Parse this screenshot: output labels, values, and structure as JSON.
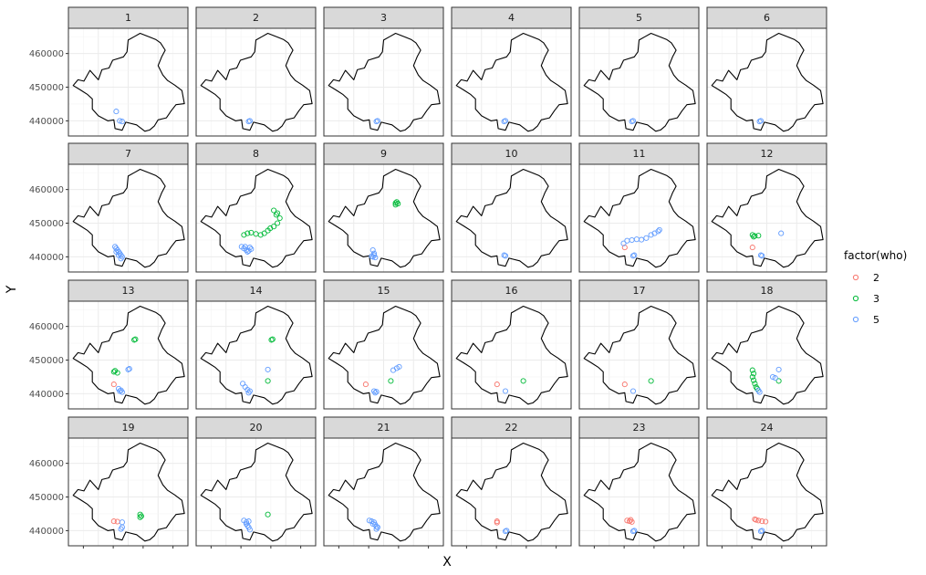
{
  "chart_data": {
    "type": "scatter",
    "facet_by": "hour",
    "panels": [
      "1",
      "2",
      "3",
      "4",
      "5",
      "6",
      "7",
      "8",
      "9",
      "10",
      "11",
      "12",
      "13",
      "14",
      "15",
      "16",
      "17",
      "18",
      "19",
      "20",
      "21",
      "22",
      "23",
      "24"
    ],
    "xlabel": "X",
    "ylabel": "Y",
    "y_ticks": [
      440000,
      450000,
      460000
    ],
    "y_tick_labels": [
      "440000",
      "450000",
      "460000"
    ],
    "ylim": [
      435500,
      467500
    ],
    "xlim": [
      0,
      1
    ],
    "grid": true,
    "legend": {
      "title": "factor(who)",
      "placement": "right",
      "entries": [
        {
          "label": "2",
          "color": "#F8766D"
        },
        {
          "label": "3",
          "color": "#00BA38"
        },
        {
          "label": "5",
          "color": "#619CFF"
        }
      ]
    },
    "boundary": [
      [
        0.04,
        450500
      ],
      [
        0.1,
        449200
      ],
      [
        0.16,
        447800
      ],
      [
        0.2,
        446500
      ],
      [
        0.2,
        443500
      ],
      [
        0.25,
        441500
      ],
      [
        0.33,
        440000
      ],
      [
        0.38,
        440300
      ],
      [
        0.39,
        437700
      ],
      [
        0.45,
        437200
      ],
      [
        0.48,
        439600
      ],
      [
        0.57,
        438800
      ],
      [
        0.64,
        436900
      ],
      [
        0.68,
        437300
      ],
      [
        0.72,
        438500
      ],
      [
        0.75,
        440300
      ],
      [
        0.82,
        440900
      ],
      [
        0.86,
        443000
      ],
      [
        0.9,
        444800
      ],
      [
        0.97,
        445100
      ],
      [
        0.95,
        449000
      ],
      [
        0.89,
        450600
      ],
      [
        0.83,
        452000
      ],
      [
        0.79,
        453600
      ],
      [
        0.75,
        456400
      ],
      [
        0.78,
        459000
      ],
      [
        0.81,
        461000
      ],
      [
        0.77,
        463200
      ],
      [
        0.73,
        464200
      ],
      [
        0.68,
        464900
      ],
      [
        0.6,
        466000
      ],
      [
        0.55,
        465000
      ],
      [
        0.5,
        464000
      ],
      [
        0.49,
        460500
      ],
      [
        0.46,
        459000
      ],
      [
        0.37,
        458000
      ],
      [
        0.34,
        455700
      ],
      [
        0.28,
        455200
      ],
      [
        0.25,
        452200
      ],
      [
        0.18,
        455000
      ],
      [
        0.13,
        451800
      ],
      [
        0.08,
        452200
      ],
      [
        0.04,
        450500
      ]
    ],
    "series_data": [
      {
        "panel": "1",
        "who": "5",
        "points": [
          [
            0.4,
            442800
          ],
          [
            0.45,
            439800
          ],
          [
            0.43,
            440000
          ]
        ]
      },
      {
        "panel": "2",
        "who": "5",
        "points": [
          [
            0.44,
            439800
          ],
          [
            0.45,
            440000
          ]
        ]
      },
      {
        "panel": "3",
        "who": "5",
        "points": [
          [
            0.44,
            439800
          ],
          [
            0.45,
            440000
          ]
        ]
      },
      {
        "panel": "4",
        "who": "5",
        "points": [
          [
            0.44,
            439800
          ],
          [
            0.45,
            440000
          ]
        ]
      },
      {
        "panel": "5",
        "who": "5",
        "points": [
          [
            0.44,
            439800
          ],
          [
            0.45,
            440000
          ]
        ]
      },
      {
        "panel": "6",
        "who": "5",
        "points": [
          [
            0.44,
            439800
          ],
          [
            0.45,
            440000
          ]
        ]
      },
      {
        "panel": "7",
        "who": "5",
        "points": [
          [
            0.39,
            443000
          ],
          [
            0.4,
            442500
          ],
          [
            0.41,
            442000
          ],
          [
            0.42,
            441500
          ],
          [
            0.43,
            441000
          ],
          [
            0.44,
            440500
          ],
          [
            0.45,
            440000
          ],
          [
            0.44,
            439500
          ],
          [
            0.42,
            440500
          ],
          [
            0.4,
            441500
          ]
        ]
      },
      {
        "panel": "8",
        "who": "3",
        "points": [
          [
            0.4,
            446500
          ],
          [
            0.43,
            447000
          ],
          [
            0.46,
            447200
          ],
          [
            0.5,
            446800
          ],
          [
            0.54,
            446500
          ],
          [
            0.57,
            447000
          ],
          [
            0.6,
            447800
          ],
          [
            0.62,
            448500
          ],
          [
            0.65,
            449000
          ],
          [
            0.68,
            450000
          ],
          [
            0.7,
            451500
          ],
          [
            0.67,
            452500
          ],
          [
            0.65,
            453800
          ],
          [
            0.68,
            453000
          ]
        ]
      },
      {
        "panel": "8",
        "who": "5",
        "points": [
          [
            0.38,
            443000
          ],
          [
            0.4,
            442500
          ],
          [
            0.42,
            442000
          ],
          [
            0.44,
            441800
          ],
          [
            0.46,
            442300
          ],
          [
            0.43,
            441500
          ],
          [
            0.41,
            443000
          ],
          [
            0.45,
            442800
          ]
        ]
      },
      {
        "panel": "9",
        "who": "3",
        "points": [
          [
            0.6,
            456000
          ],
          [
            0.61,
            456300
          ],
          [
            0.62,
            455800
          ],
          [
            0.6,
            455500
          ]
        ]
      },
      {
        "panel": "9",
        "who": "5",
        "points": [
          [
            0.41,
            442000
          ],
          [
            0.42,
            441000
          ],
          [
            0.41,
            440000
          ],
          [
            0.43,
            439800
          ],
          [
            0.42,
            440500
          ],
          [
            0.4,
            440200
          ]
        ]
      },
      {
        "panel": "10",
        "who": "5",
        "points": [
          [
            0.45,
            440300
          ],
          [
            0.44,
            440500
          ]
        ]
      },
      {
        "panel": "11",
        "who": "2",
        "points": [
          [
            0.38,
            442800
          ]
        ]
      },
      {
        "panel": "11",
        "who": "5",
        "points": [
          [
            0.37,
            444000
          ],
          [
            0.4,
            444800
          ],
          [
            0.44,
            445000
          ],
          [
            0.48,
            445200
          ],
          [
            0.52,
            445100
          ],
          [
            0.56,
            445600
          ],
          [
            0.6,
            446500
          ],
          [
            0.63,
            447000
          ],
          [
            0.66,
            447600
          ],
          [
            0.67,
            448000
          ],
          [
            0.45,
            440300
          ],
          [
            0.46,
            440500
          ]
        ]
      },
      {
        "panel": "12",
        "who": "2",
        "points": [
          [
            0.38,
            442800
          ]
        ]
      },
      {
        "panel": "12",
        "who": "3",
        "points": [
          [
            0.38,
            446500
          ],
          [
            0.4,
            446200
          ],
          [
            0.43,
            446300
          ],
          [
            0.39,
            446000
          ]
        ]
      },
      {
        "panel": "12",
        "who": "5",
        "points": [
          [
            0.62,
            447000
          ],
          [
            0.45,
            440500
          ],
          [
            0.46,
            440300
          ]
        ]
      },
      {
        "panel": "13",
        "who": "2",
        "points": [
          [
            0.38,
            442800
          ]
        ]
      },
      {
        "panel": "13",
        "who": "3",
        "points": [
          [
            0.55,
            456000
          ],
          [
            0.56,
            456200
          ],
          [
            0.38,
            446500
          ],
          [
            0.41,
            446200
          ],
          [
            0.39,
            446800
          ]
        ]
      },
      {
        "panel": "13",
        "who": "5",
        "points": [
          [
            0.5,
            447200
          ],
          [
            0.51,
            447400
          ],
          [
            0.42,
            441500
          ],
          [
            0.44,
            441000
          ],
          [
            0.45,
            440500
          ],
          [
            0.43,
            440800
          ]
        ]
      },
      {
        "panel": "14",
        "who": "3",
        "points": [
          [
            0.63,
            456000
          ],
          [
            0.64,
            456200
          ],
          [
            0.6,
            443800
          ]
        ]
      },
      {
        "panel": "14",
        "who": "5",
        "points": [
          [
            0.6,
            447200
          ],
          [
            0.39,
            443000
          ],
          [
            0.41,
            442000
          ],
          [
            0.43,
            441200
          ],
          [
            0.45,
            440800
          ],
          [
            0.44,
            440300
          ]
        ]
      },
      {
        "panel": "15",
        "who": "2",
        "points": [
          [
            0.35,
            442800
          ]
        ]
      },
      {
        "panel": "15",
        "who": "3",
        "points": [
          [
            0.56,
            443800
          ]
        ]
      },
      {
        "panel": "15",
        "who": "5",
        "points": [
          [
            0.58,
            447000
          ],
          [
            0.61,
            447600
          ],
          [
            0.63,
            448000
          ],
          [
            0.42,
            440800
          ],
          [
            0.43,
            440300
          ],
          [
            0.44,
            440600
          ]
        ]
      },
      {
        "panel": "16",
        "who": "2",
        "points": [
          [
            0.38,
            442800
          ]
        ]
      },
      {
        "panel": "16",
        "who": "3",
        "points": [
          [
            0.6,
            443800
          ]
        ]
      },
      {
        "panel": "16",
        "who": "5",
        "points": [
          [
            0.45,
            440800
          ]
        ]
      },
      {
        "panel": "17",
        "who": "2",
        "points": [
          [
            0.38,
            442800
          ]
        ]
      },
      {
        "panel": "17",
        "who": "3",
        "points": [
          [
            0.6,
            443800
          ]
        ]
      },
      {
        "panel": "17",
        "who": "5",
        "points": [
          [
            0.45,
            440800
          ]
        ]
      },
      {
        "panel": "18",
        "who": "3",
        "points": [
          [
            0.38,
            447000
          ],
          [
            0.39,
            446000
          ],
          [
            0.38,
            445000
          ],
          [
            0.39,
            444000
          ],
          [
            0.4,
            443000
          ],
          [
            0.41,
            442000
          ],
          [
            0.42,
            441500
          ],
          [
            0.6,
            443800
          ]
        ]
      },
      {
        "panel": "18",
        "who": "5",
        "points": [
          [
            0.6,
            447200
          ],
          [
            0.55,
            445000
          ],
          [
            0.57,
            444700
          ],
          [
            0.43,
            441000
          ],
          [
            0.44,
            440500
          ]
        ]
      },
      {
        "panel": "19",
        "who": "2",
        "points": [
          [
            0.38,
            442800
          ],
          [
            0.41,
            442700
          ]
        ]
      },
      {
        "panel": "19",
        "who": "3",
        "points": [
          [
            0.6,
            444800
          ],
          [
            0.61,
            444300
          ],
          [
            0.6,
            444000
          ]
        ]
      },
      {
        "panel": "19",
        "who": "5",
        "points": [
          [
            0.45,
            442500
          ],
          [
            0.45,
            441000
          ],
          [
            0.44,
            440500
          ]
        ]
      },
      {
        "panel": "20",
        "who": "3",
        "points": [
          [
            0.6,
            444800
          ]
        ]
      },
      {
        "panel": "20",
        "who": "5",
        "points": [
          [
            0.4,
            443000
          ],
          [
            0.42,
            442500
          ],
          [
            0.44,
            442800
          ],
          [
            0.43,
            441500
          ],
          [
            0.44,
            441000
          ],
          [
            0.45,
            440300
          ],
          [
            0.42,
            442000
          ]
        ]
      },
      {
        "panel": "21",
        "who": "5",
        "points": [
          [
            0.38,
            443000
          ],
          [
            0.4,
            442800
          ],
          [
            0.42,
            442500
          ],
          [
            0.43,
            441800
          ],
          [
            0.44,
            441200
          ],
          [
            0.45,
            441000
          ],
          [
            0.44,
            440500
          ],
          [
            0.41,
            442000
          ]
        ]
      },
      {
        "panel": "22",
        "who": "2",
        "points": [
          [
            0.38,
            442800
          ],
          [
            0.38,
            442400
          ]
        ]
      },
      {
        "panel": "22",
        "who": "5",
        "points": [
          [
            0.45,
            439800
          ],
          [
            0.46,
            440000
          ]
        ]
      },
      {
        "panel": "23",
        "who": "2",
        "points": [
          [
            0.4,
            443000
          ],
          [
            0.42,
            442800
          ],
          [
            0.44,
            442600
          ],
          [
            0.43,
            443200
          ]
        ]
      },
      {
        "panel": "23",
        "who": "5",
        "points": [
          [
            0.45,
            439800
          ],
          [
            0.46,
            440000
          ]
        ]
      },
      {
        "panel": "24",
        "who": "2",
        "points": [
          [
            0.4,
            443400
          ],
          [
            0.43,
            443000
          ],
          [
            0.46,
            442800
          ],
          [
            0.49,
            442700
          ],
          [
            0.41,
            443200
          ]
        ]
      },
      {
        "panel": "24",
        "who": "5",
        "points": [
          [
            0.45,
            439800
          ],
          [
            0.46,
            440000
          ]
        ]
      }
    ]
  }
}
